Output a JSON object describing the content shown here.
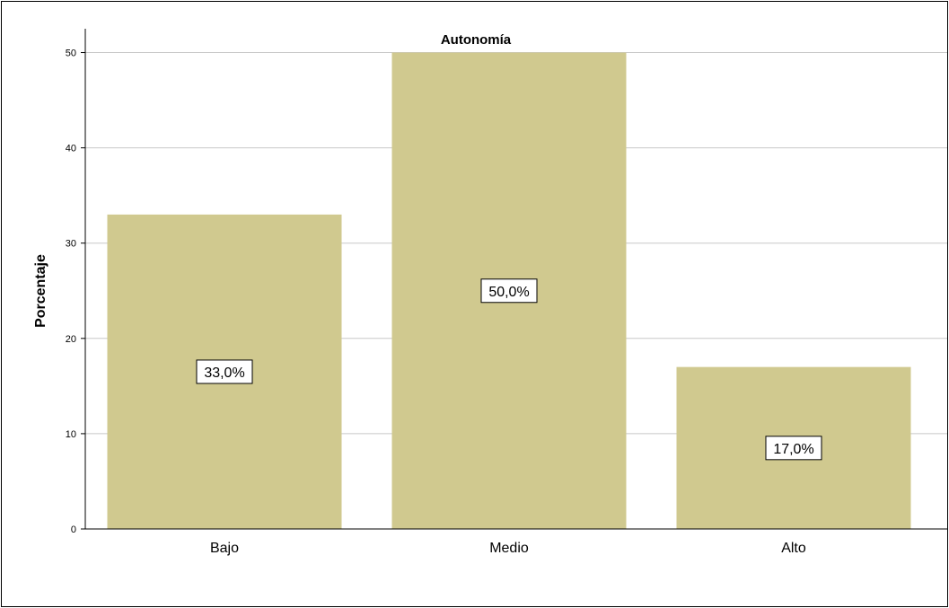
{
  "chart_data": {
    "type": "bar",
    "title": "Autonomía",
    "xlabel": "",
    "ylabel": "Porcentaje",
    "categories": [
      "Bajo",
      "Medio",
      "Alto"
    ],
    "values": [
      33.0,
      50.0,
      17.0
    ],
    "data_labels": [
      "33,0%",
      "50,0%",
      "17,0%"
    ],
    "ylim": [
      0,
      52.5
    ],
    "yticks": [
      0,
      10,
      20,
      30,
      40,
      50
    ],
    "grid": true,
    "bar_color": "#d0c98f",
    "grid_color": "#c8c8c8"
  }
}
